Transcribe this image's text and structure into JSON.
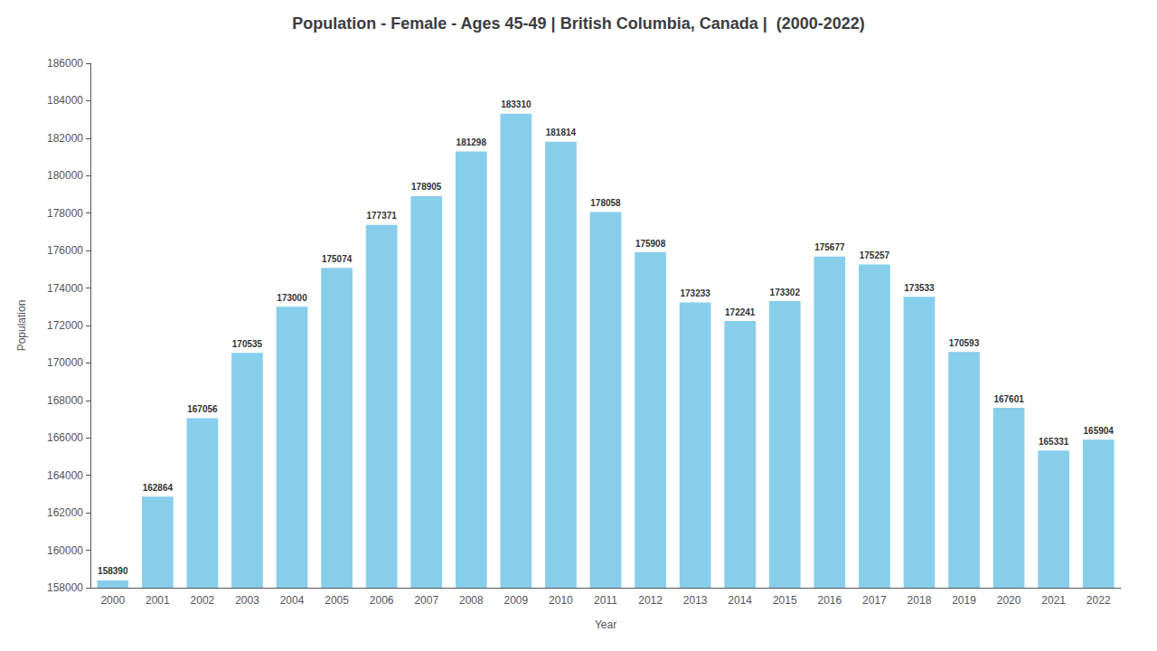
{
  "chart_data": {
    "type": "bar",
    "title": "Population - Female - Ages 45-49 | British Columbia, Canada |  (2000-2022)",
    "xlabel": "Year",
    "ylabel": "Population",
    "categories": [
      "2000",
      "2001",
      "2002",
      "2003",
      "2004",
      "2005",
      "2006",
      "2007",
      "2008",
      "2009",
      "2010",
      "2011",
      "2012",
      "2013",
      "2014",
      "2015",
      "2016",
      "2017",
      "2018",
      "2019",
      "2020",
      "2021",
      "2022"
    ],
    "values": [
      158390,
      162864,
      167056,
      170535,
      173000,
      175074,
      177371,
      178905,
      181298,
      183310,
      181814,
      178058,
      175908,
      173233,
      172241,
      173302,
      175677,
      175257,
      173533,
      170593,
      167601,
      165331,
      165904
    ],
    "color": "#87CEEB",
    "ylim": [
      158000,
      186000
    ],
    "yticks": [
      158000,
      160000,
      162000,
      164000,
      166000,
      168000,
      170000,
      172000,
      174000,
      176000,
      178000,
      180000,
      182000,
      184000,
      186000
    ],
    "grid": false,
    "data_labels": true
  }
}
